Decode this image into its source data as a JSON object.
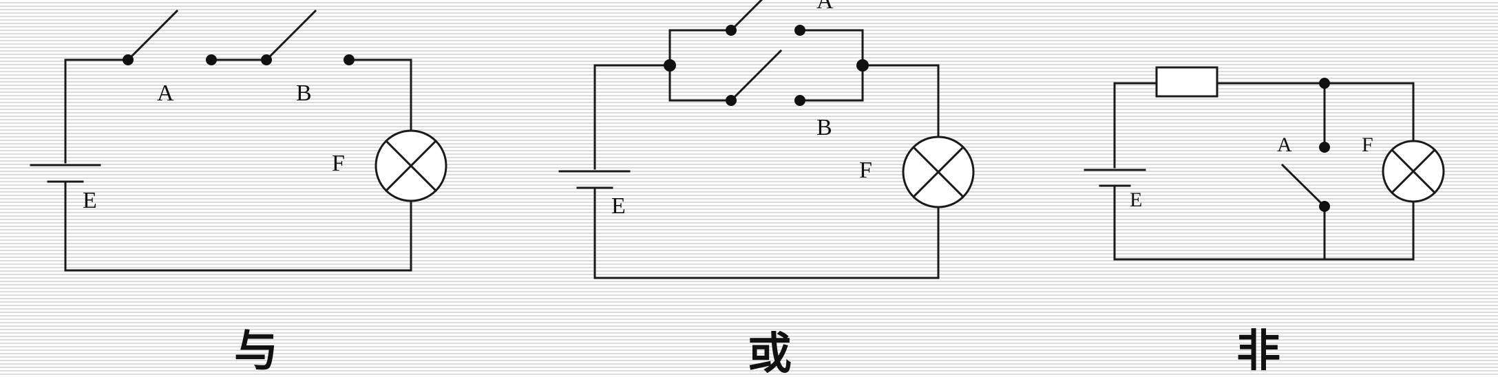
{
  "and_circuit": {
    "switch_a_label": "A",
    "switch_b_label": "B",
    "lamp_label": "F",
    "battery_label": "E",
    "caption": "与"
  },
  "or_circuit": {
    "switch_a_label": "A",
    "switch_b_label": "B",
    "lamp_label": "F",
    "battery_label": "E",
    "caption": "或"
  },
  "not_circuit": {
    "switch_a_label": "A",
    "lamp_label": "F",
    "battery_label": "E",
    "caption": "非"
  }
}
